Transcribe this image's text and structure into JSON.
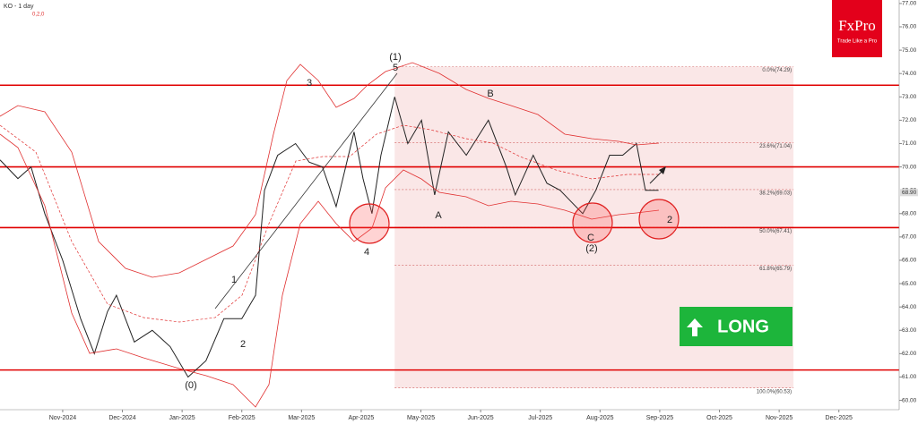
{
  "header": {
    "title": "KO - 1 day",
    "indicator": "0,2,0"
  },
  "logo": {
    "brand": "FxPro",
    "tagline": "Trade Like a Pro"
  },
  "button": {
    "label": "LONG"
  },
  "chart_data": {
    "type": "line",
    "categories": [
      "Nov-2024",
      "Dec-2024",
      "Jan-2025",
      "Feb-2025",
      "Mar-2025",
      "Apr-2025",
      "May-2025",
      "Jun-2025",
      "Jul-2025",
      "Aug-2025",
      "Sep-2025",
      "Oct-2025",
      "Nov-2025",
      "Dec-2025"
    ],
    "xlim": [
      -1.05,
      14.01
    ],
    "ylim": [
      59.6,
      77.15
    ],
    "yticks": [
      {
        "value": 60,
        "label": "60.00"
      },
      {
        "value": 61,
        "label": "61.00"
      },
      {
        "value": 62,
        "label": "62.00"
      },
      {
        "value": 63,
        "label": "63.00"
      },
      {
        "value": 64,
        "label": "64.00"
      },
      {
        "value": 65,
        "label": "65.00"
      },
      {
        "value": 66,
        "label": "66.00"
      },
      {
        "value": 67,
        "label": "67.00"
      },
      {
        "value": 68,
        "label": "68.00"
      },
      {
        "value": 69,
        "label": "69.00"
      },
      {
        "value": 70,
        "label": "70.00"
      },
      {
        "value": 71,
        "label": "71.00"
      },
      {
        "value": 72,
        "label": "72.00"
      },
      {
        "value": 73,
        "label": "73.00"
      },
      {
        "value": 74,
        "label": "74.00"
      },
      {
        "value": 75,
        "label": "75.00"
      },
      {
        "value": 76,
        "label": "76.00"
      },
      {
        "value": 77,
        "label": "77.00"
      }
    ],
    "series": [
      {
        "name": "KO",
        "color": "#222222",
        "x": [
          -1.05,
          -0.75,
          -0.53,
          -0.3,
          0,
          0.3,
          0.53,
          0.75,
          0.9,
          1.2,
          1.5,
          1.8,
          2.1,
          2.4,
          2.7,
          3.0,
          3.23,
          3.38,
          3.6,
          3.9,
          4.13,
          4.35,
          4.58,
          4.88,
          5.03,
          5.18,
          5.33,
          5.56,
          5.78,
          6.01,
          6.23,
          6.46,
          6.76,
          7.13,
          7.43,
          7.58,
          7.88,
          8.11,
          8.33,
          8.71,
          8.93,
          9.16,
          9.38,
          9.61,
          9.76,
          9.98
        ],
        "values": [
          70.3,
          69.5,
          70.0,
          68.0,
          66.0,
          63.5,
          62.0,
          63.8,
          64.5,
          62.5,
          63.0,
          62.3,
          61.0,
          61.7,
          63.5,
          63.5,
          64.5,
          69.0,
          70.5,
          71.0,
          70.2,
          70.0,
          68.3,
          71.5,
          69.5,
          68.0,
          70.5,
          73.0,
          71.0,
          72.0,
          68.8,
          71.5,
          70.5,
          72.0,
          70.0,
          68.8,
          70.5,
          69.3,
          69.0,
          68.0,
          69.0,
          70.5,
          70.5,
          71.0,
          69.0,
          69.0
        ]
      }
    ],
    "levels": [
      73.5,
      70.0,
      67.4,
      61.3
    ],
    "last_price": {
      "value": 68.9,
      "label": "68.90"
    },
    "fib_box": {
      "x": [
        5.56,
        12.24
      ]
    },
    "fib": [
      {
        "value": 74.29,
        "label": "0.0%(74.29)"
      },
      {
        "value": 71.04,
        "label": "23.6%(71.04)"
      },
      {
        "value": 69.03,
        "label": "38.2%(69.03)"
      },
      {
        "value": 67.41,
        "label": "50.0%(67.41)"
      },
      {
        "value": 65.79,
        "label": "61.8%(65.79)"
      },
      {
        "value": 60.53,
        "label": "100.0%(60.53)"
      }
    ],
    "annotations": [
      "(1)",
      "5",
      "3",
      "4",
      "1",
      "2",
      "A",
      "B",
      "C",
      "(2)",
      "2",
      "(0)"
    ]
  }
}
